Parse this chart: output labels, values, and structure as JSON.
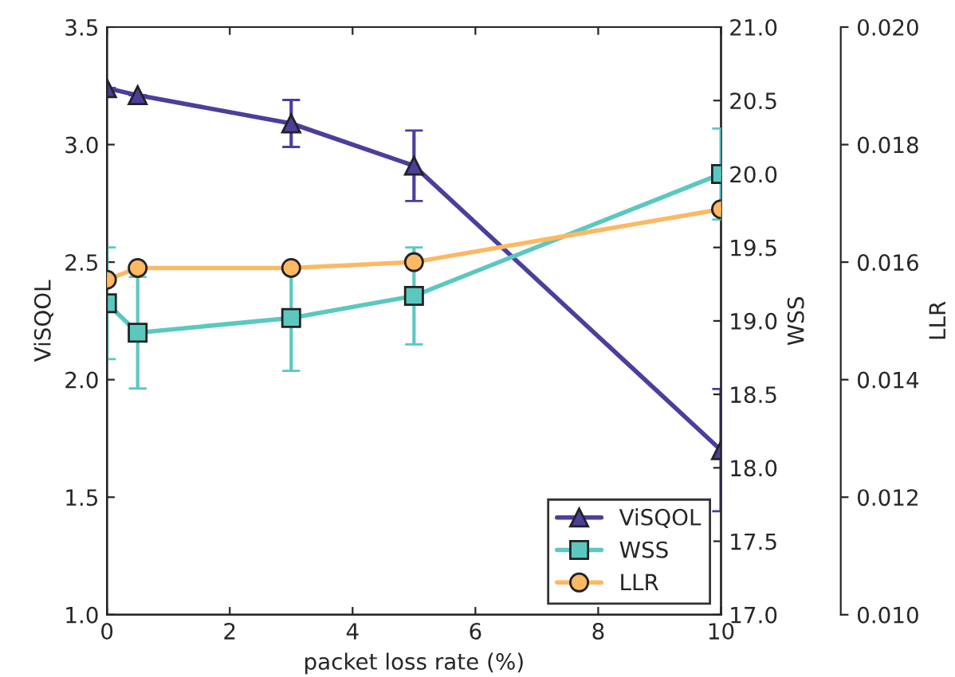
{
  "chart_data": {
    "type": "line",
    "xlabel": "packet loss rate (%)",
    "ylabel": "ViSQOL",
    "y2label": "WSS",
    "y3label": "LLR",
    "x": [
      0,
      0.5,
      3,
      5,
      10
    ],
    "series": [
      {
        "name": "ViSQOL",
        "color": "#4b3f9c",
        "marker": "triangle",
        "values": [
          3.24,
          3.21,
          3.09,
          2.91,
          1.7
        ],
        "errors": [
          null,
          null,
          0.1,
          0.15,
          0.26
        ]
      },
      {
        "name": "WSS",
        "color": "#5bc8c0",
        "marker": "square",
        "axis": "y2",
        "values": [
          19.12,
          18.92,
          19.02,
          19.17,
          20.0
        ],
        "errors": [
          0.38,
          0.38,
          0.36,
          0.33,
          0.31
        ]
      },
      {
        "name": "LLR",
        "color": "#fdb863",
        "marker": "circle",
        "axis": "y3",
        "values": [
          0.0157,
          0.0159,
          0.0159,
          0.016,
          0.0169
        ]
      }
    ],
    "xlim": [
      0,
      10
    ],
    "xticks": [
      0,
      2,
      4,
      6,
      8,
      10
    ],
    "ylim": [
      1.0,
      3.5
    ],
    "yticks": [
      {
        "value": 1.0,
        "label": "1.0"
      },
      {
        "value": 1.5,
        "label": "1.5"
      },
      {
        "value": 2.0,
        "label": "2.0"
      },
      {
        "value": 2.5,
        "label": "2.5"
      },
      {
        "value": 3.0,
        "label": "3.0"
      },
      {
        "value": 3.5,
        "label": "3.5"
      }
    ],
    "y2lim": [
      17.0,
      21.0
    ],
    "y2ticks": [
      {
        "value": 17.0,
        "label": "17.0"
      },
      {
        "value": 17.5,
        "label": "17.5"
      },
      {
        "value": 18.0,
        "label": "18.0"
      },
      {
        "value": 18.5,
        "label": "18.5"
      },
      {
        "value": 19.0,
        "label": "19.0"
      },
      {
        "value": 19.5,
        "label": "19.5"
      },
      {
        "value": 20.0,
        "label": "20.0"
      },
      {
        "value": 20.5,
        "label": "20.5"
      },
      {
        "value": 21.0,
        "label": "21.0"
      }
    ],
    "y3lim": [
      0.01,
      0.02
    ],
    "y3ticks": [
      {
        "value": 0.01,
        "label": "0.010"
      },
      {
        "value": 0.012,
        "label": "0.012"
      },
      {
        "value": 0.014,
        "label": "0.014"
      },
      {
        "value": 0.016,
        "label": "0.016"
      },
      {
        "value": 0.018,
        "label": "0.018"
      },
      {
        "value": 0.02,
        "label": "0.020"
      }
    ],
    "legend": "bottom right",
    "grid": false
  }
}
